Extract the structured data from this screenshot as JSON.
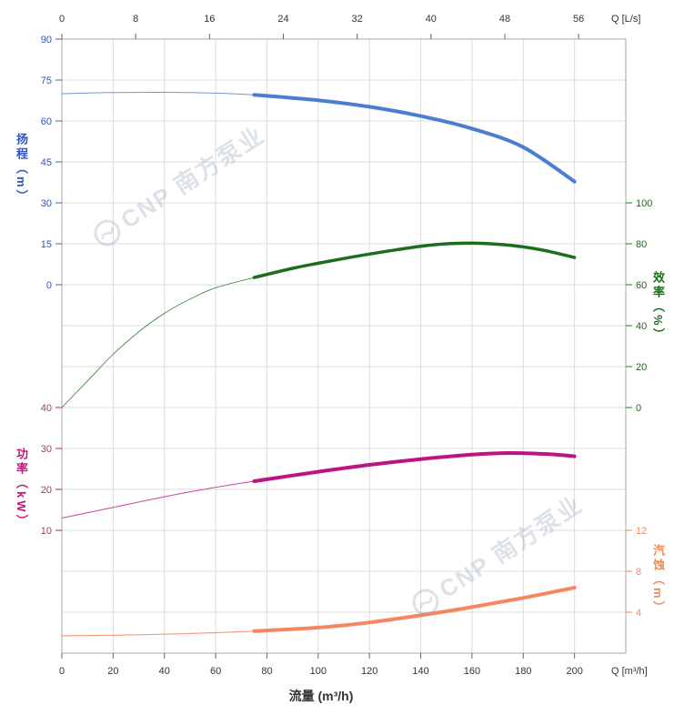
{
  "watermark": {
    "text": "CNP 南方泵业",
    "color": "#8fa0b5"
  },
  "chart_data": {
    "type": "line",
    "title": "",
    "x_axis_bottom": {
      "title": "流量 (m³/h)",
      "corner_label": "Q [m³/h]",
      "min": 0,
      "max": 220,
      "ticks": [
        0,
        20,
        40,
        60,
        80,
        100,
        120,
        140,
        160,
        180,
        200
      ],
      "grid": true
    },
    "x_axis_top": {
      "corner_label": "Q [L/s]",
      "min": 0,
      "max": 61.1,
      "ticks": [
        0,
        8,
        16,
        24,
        32,
        40,
        48,
        56
      ]
    },
    "y_axes": {
      "head": {
        "title": "扬程（m）",
        "side": "left",
        "range": [
          0,
          90
        ],
        "ticks": [
          90,
          75,
          60,
          45,
          30,
          15,
          0
        ],
        "color": "#3a66cc",
        "label_color": "#2b55c8"
      },
      "power": {
        "title": "功率（kW）",
        "side": "left",
        "range": [
          10,
          40
        ],
        "ticks": [
          40,
          30,
          20,
          10
        ],
        "color": "#c2177d",
        "label_color": "#a04055"
      },
      "efficiency": {
        "title": "效率（%）",
        "side": "right",
        "range": [
          0,
          100
        ],
        "ticks": [
          100,
          80,
          60,
          40,
          20,
          0
        ],
        "color": "#1e7a1e",
        "label_color": "#2a5c2a"
      },
      "npsh": {
        "title": "汽蚀（m）",
        "side": "right",
        "range": [
          0,
          12
        ],
        "ticks": [
          12,
          8,
          4
        ],
        "color": "#f0875e",
        "label_color": "#ef8a5c"
      }
    },
    "series": [
      {
        "name": "head",
        "axis": "head",
        "color": "#4a7ed2",
        "thin_color": "#6b97dd",
        "width": 4,
        "thin_width": 1,
        "split_q": 75,
        "points": [
          [
            0,
            70
          ],
          [
            20,
            70.4
          ],
          [
            40,
            70.5
          ],
          [
            60,
            70.2
          ],
          [
            75,
            69.6
          ],
          [
            100,
            67.6
          ],
          [
            120,
            65.2
          ],
          [
            140,
            61.8
          ],
          [
            160,
            57.2
          ],
          [
            180,
            50.4
          ],
          [
            200,
            37.8
          ]
        ]
      },
      {
        "name": "efficiency",
        "axis": "efficiency",
        "color": "#1c6e1c",
        "thin_color": "#2a7d2a",
        "width": 3.5,
        "thin_width": 0.8,
        "split_q": 75,
        "points": [
          [
            0,
            0
          ],
          [
            10,
            13
          ],
          [
            20,
            26
          ],
          [
            30,
            37
          ],
          [
            40,
            46
          ],
          [
            50,
            53
          ],
          [
            60,
            58.5
          ],
          [
            75,
            63.5
          ],
          [
            90,
            68
          ],
          [
            100,
            70.5
          ],
          [
            110,
            72.8
          ],
          [
            120,
            75
          ],
          [
            130,
            77
          ],
          [
            140,
            78.8
          ],
          [
            150,
            80
          ],
          [
            160,
            80.3
          ],
          [
            170,
            79.8
          ],
          [
            180,
            78.5
          ],
          [
            190,
            76.3
          ],
          [
            200,
            73.3
          ]
        ]
      },
      {
        "name": "power",
        "axis": "power",
        "color": "#bd1483",
        "thin_color": "#c4479a",
        "width": 4,
        "thin_width": 1,
        "split_q": 75,
        "points": [
          [
            0,
            13
          ],
          [
            20,
            15.6
          ],
          [
            40,
            18.2
          ],
          [
            60,
            20.5
          ],
          [
            75,
            22
          ],
          [
            100,
            24.3
          ],
          [
            120,
            26
          ],
          [
            140,
            27.4
          ],
          [
            160,
            28.5
          ],
          [
            175,
            28.9
          ],
          [
            190,
            28.6
          ],
          [
            200,
            28.1
          ]
        ]
      },
      {
        "name": "npsh",
        "axis": "npsh",
        "color": "#f4875f",
        "thin_color": "#f49d7c",
        "width": 4,
        "thin_width": 1.2,
        "split_q": 75,
        "points": [
          [
            0,
            1.7
          ],
          [
            20,
            1.75
          ],
          [
            40,
            1.85
          ],
          [
            60,
            2.0
          ],
          [
            75,
            2.15
          ],
          [
            100,
            2.5
          ],
          [
            120,
            3.0
          ],
          [
            140,
            3.7
          ],
          [
            160,
            4.5
          ],
          [
            180,
            5.4
          ],
          [
            200,
            6.4
          ]
        ]
      }
    ]
  }
}
